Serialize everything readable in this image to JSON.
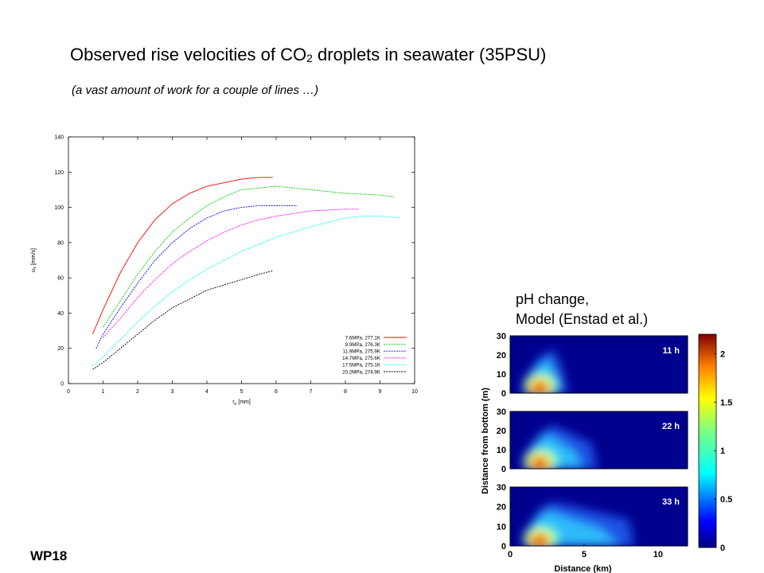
{
  "slide": {
    "title_main": "Observed rise velocities of CO",
    "title_sub": "2",
    "title_rest": " droplets in seawater (35PSU)",
    "subtitle": "(a vast amount of work for a couple of lines …)",
    "ph_caption_line1": "pH change,",
    "ph_caption_line2": "Model (Enstad et al.)",
    "footer": "WP18"
  },
  "chart_data": [
    {
      "type": "line",
      "title": "",
      "xlabel": "r",
      "xlabel_sub": "e",
      "xlabel_unit": " [mm]",
      "ylabel": "u",
      "ylabel_sub": "T",
      "ylabel_unit": " [mm/s]",
      "xlim": [
        0,
        10
      ],
      "ylim": [
        0,
        140
      ],
      "xticks": [
        0,
        1,
        2,
        3,
        4,
        5,
        6,
        7,
        8,
        9,
        10
      ],
      "yticks": [
        0,
        20,
        40,
        60,
        80,
        100,
        120,
        140
      ],
      "legend_position": "bottom-right",
      "series": [
        {
          "name": "7.6MPa, 277.1K",
          "color": "#ff0000",
          "dash": "solid",
          "x": [
            0.7,
            1.0,
            1.5,
            2.0,
            2.5,
            3.0,
            3.5,
            4.0,
            4.5,
            5.0,
            5.5,
            5.9
          ],
          "y": [
            28,
            42,
            63,
            80,
            93,
            102,
            108,
            112,
            114,
            116,
            117,
            117
          ]
        },
        {
          "name": "9.9MPa, 276.3K",
          "color": "#00cc00",
          "dash": "dashed",
          "x": [
            1.0,
            1.5,
            2.0,
            2.5,
            3.0,
            3.5,
            4.0,
            4.5,
            5.0,
            5.5,
            6.0,
            6.5,
            7.0,
            8.0,
            9.0,
            9.4
          ],
          "y": [
            32,
            47,
            62,
            75,
            86,
            94,
            101,
            106,
            110,
            111,
            112,
            111,
            110,
            108,
            107,
            106
          ]
        },
        {
          "name": "11.9MPa, 275.9K",
          "color": "#0000ff",
          "dash": "dashed",
          "x": [
            0.8,
            1.0,
            1.5,
            2.0,
            2.5,
            3.0,
            3.5,
            4.0,
            4.5,
            5.0,
            5.5,
            6.0,
            6.6
          ],
          "y": [
            20,
            28,
            43,
            57,
            70,
            80,
            88,
            94,
            98,
            100,
            101,
            101,
            101
          ]
        },
        {
          "name": "14.7MPa, 275.6K",
          "color": "#ff00ff",
          "dash": "dashed",
          "x": [
            1.0,
            1.5,
            2.0,
            2.5,
            3.0,
            3.5,
            4.0,
            4.5,
            5.0,
            5.5,
            6.0,
            7.0,
            8.0,
            8.4
          ],
          "y": [
            26,
            37,
            49,
            59,
            68,
            75,
            81,
            86,
            90,
            93,
            95,
            98,
            99,
            99
          ]
        },
        {
          "name": "17.5MPa, 275.1K",
          "color": "#00ffff",
          "dash": "dashed",
          "x": [
            0.7,
            1.0,
            1.5,
            2.0,
            2.5,
            3.0,
            3.5,
            4.0,
            4.5,
            5.0,
            5.5,
            6.0,
            7.0,
            8.0,
            8.5,
            9.0,
            9.6
          ],
          "y": [
            10,
            15,
            25,
            35,
            44,
            52,
            59,
            65,
            70,
            75,
            79,
            83,
            89,
            94,
            95,
            95,
            94
          ]
        },
        {
          "name": "20.2MPa, 274.9K",
          "color": "#000000",
          "dash": "dashed",
          "x": [
            0.7,
            1.0,
            1.5,
            2.0,
            2.5,
            3.0,
            3.5,
            4.0,
            4.5,
            5.0,
            5.5,
            5.9
          ],
          "y": [
            8,
            12,
            20,
            28,
            36,
            43,
            48,
            53,
            56,
            59,
            62,
            64
          ]
        }
      ]
    },
    {
      "type": "heatmap",
      "title": "",
      "xlabel": "Distance (km)",
      "ylabel": "Distance from bottom (m)",
      "xlim": [
        0,
        12
      ],
      "ylim": [
        0,
        30
      ],
      "xticks": [
        0,
        5,
        10
      ],
      "yticks": [
        0,
        10,
        20,
        30
      ],
      "colorbar": {
        "min": 0,
        "max": 2.2,
        "ticks": [
          "0",
          "0.5",
          "1",
          "1.5",
          "2"
        ]
      },
      "panels": [
        {
          "label": "11 h",
          "plume_extent_km": 3.5
        },
        {
          "label": "22 h",
          "plume_extent_km": 5.5
        },
        {
          "label": "33 h",
          "plume_extent_km": 8.0
        }
      ]
    }
  ]
}
